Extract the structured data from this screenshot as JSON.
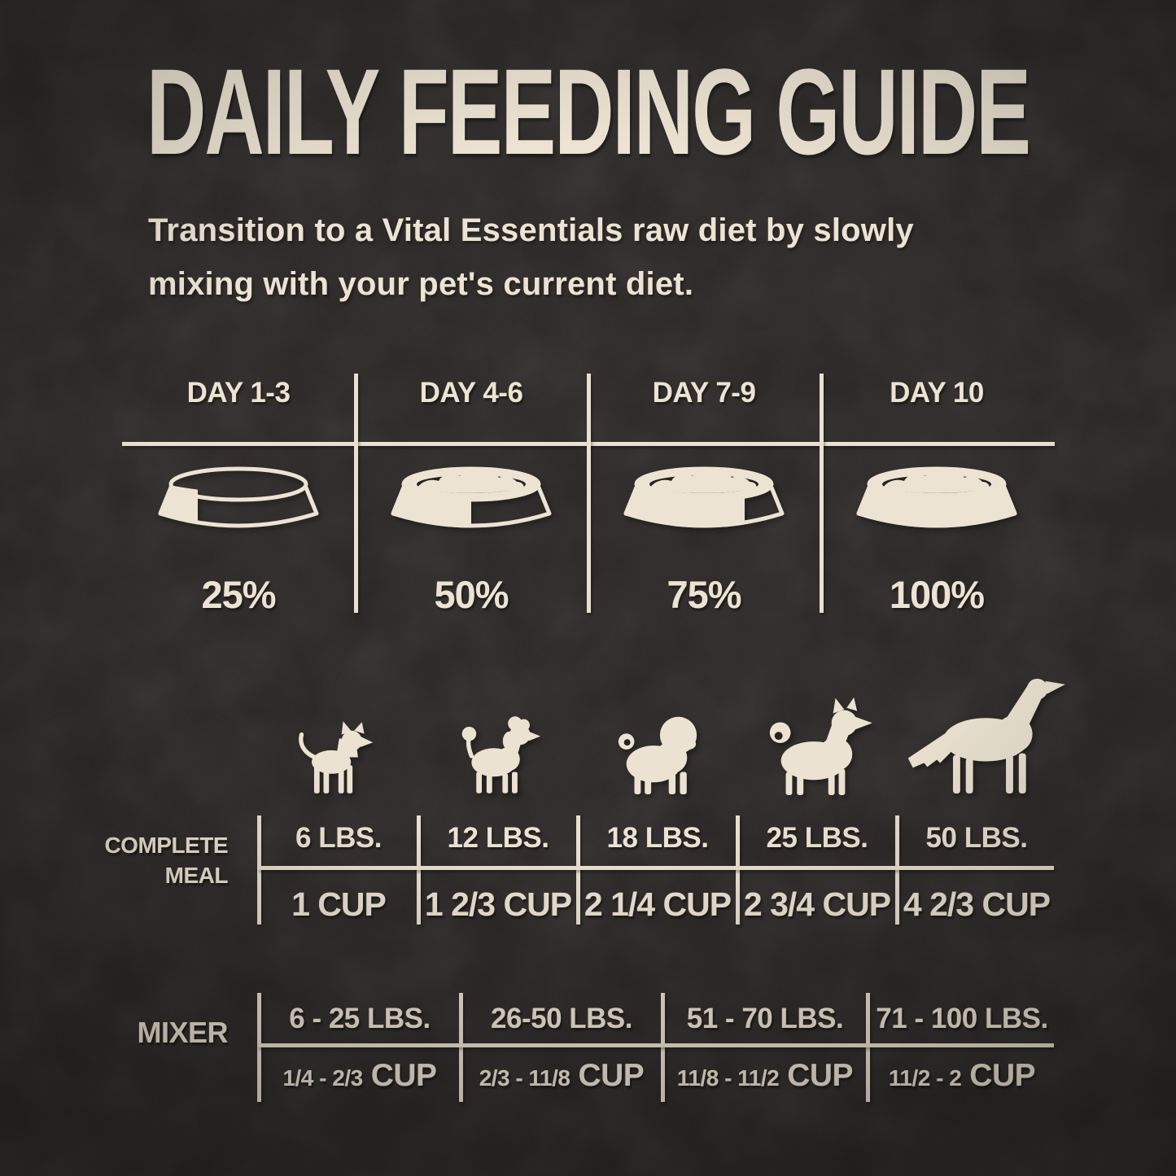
{
  "title": "DAILY FEEDING GUIDE",
  "subtitle_lines": [
    "Transition to a Vital Essentials raw diet by slowly",
    "mixing with your pet's current diet."
  ],
  "colors": {
    "background": "#262221",
    "cream": "#ece3d2"
  },
  "transition": {
    "columns": [
      {
        "day": "DAY 1-3",
        "percent": "25%"
      },
      {
        "day": "DAY 4-6",
        "percent": "50%"
      },
      {
        "day": "DAY 7-9",
        "percent": "75%"
      },
      {
        "day": "DAY 10",
        "percent": "100%"
      }
    ]
  },
  "dog_icons": [
    "chihuahua-icon",
    "poodle-icon",
    "pug-icon",
    "shiba-icon",
    "large-dog-icon"
  ],
  "complete_meal": {
    "label_line1": "COMPLETE",
    "label_line2": "MEAL",
    "columns": [
      {
        "weight": "6 LBS.",
        "cup": "1 CUP"
      },
      {
        "weight": "12 LBS.",
        "cup": "1 2/3 CUP"
      },
      {
        "weight": "18 LBS.",
        "cup": "2 1/4 CUP"
      },
      {
        "weight": "25 LBS.",
        "cup": "2 3/4 CUP"
      },
      {
        "weight": "50 LBS.",
        "cup": "4 2/3 CUP"
      }
    ]
  },
  "mixer": {
    "label": "MIXER",
    "columns": [
      {
        "weight": "6 - 25 LBS.",
        "range": "1/4 - 2/3",
        "unit": "CUP"
      },
      {
        "weight": "26-50 LBS.",
        "range": "2/3 - 11/8",
        "unit": "CUP"
      },
      {
        "weight": "51 - 70 LBS.",
        "range": "11/8 - 11/2",
        "unit": "CUP"
      },
      {
        "weight": "71 - 100 LBS.",
        "range": "11/2 - 2",
        "unit": "CUP"
      }
    ]
  }
}
